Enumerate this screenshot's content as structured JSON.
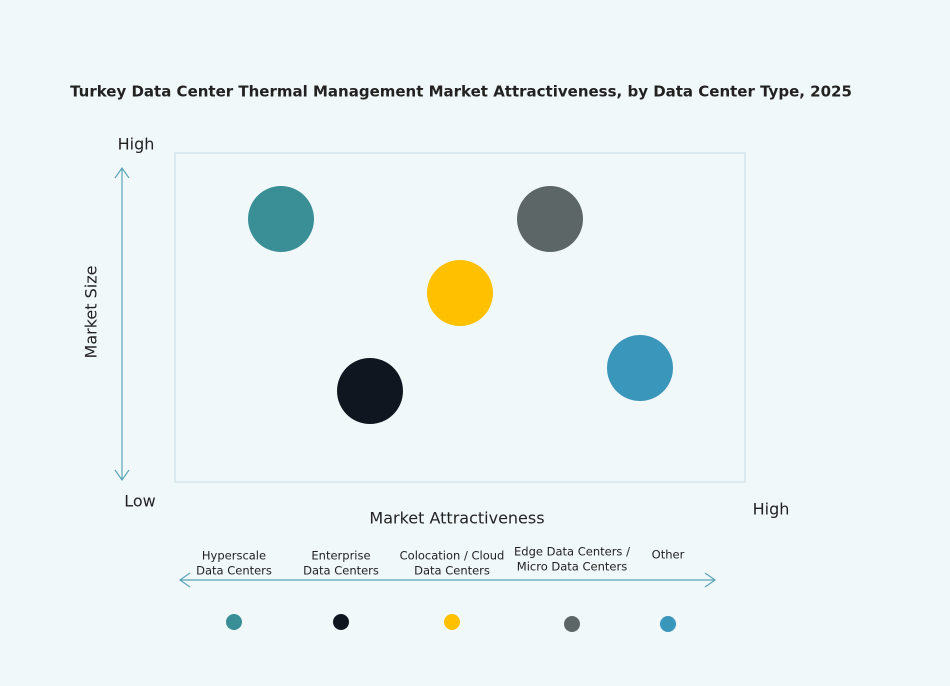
{
  "title": "Turkey Data Center Thermal Management Market Attractiveness,  by Data Center Type, 2025",
  "y_axis": {
    "label": "Market Size",
    "high": "High",
    "low": "Low"
  },
  "x_axis": {
    "label": "Market Attractiveness",
    "high": "High"
  },
  "segments": [
    {
      "lines": [
        "Hyperscale",
        "Data Centers"
      ],
      "color": "#3a8f96"
    },
    {
      "lines": [
        "Enterprise",
        "Data Centers"
      ],
      "color": "#0f1620"
    },
    {
      "lines": [
        "Colocation / Cloud",
        "Data Centers"
      ],
      "color": "#ffc000"
    },
    {
      "lines": [
        "Edge Data Centers /",
        "Micro Data Centers"
      ],
      "color": "#5c6667"
    },
    {
      "lines": [
        "Other"
      ],
      "color": "#3a96bb"
    }
  ]
}
